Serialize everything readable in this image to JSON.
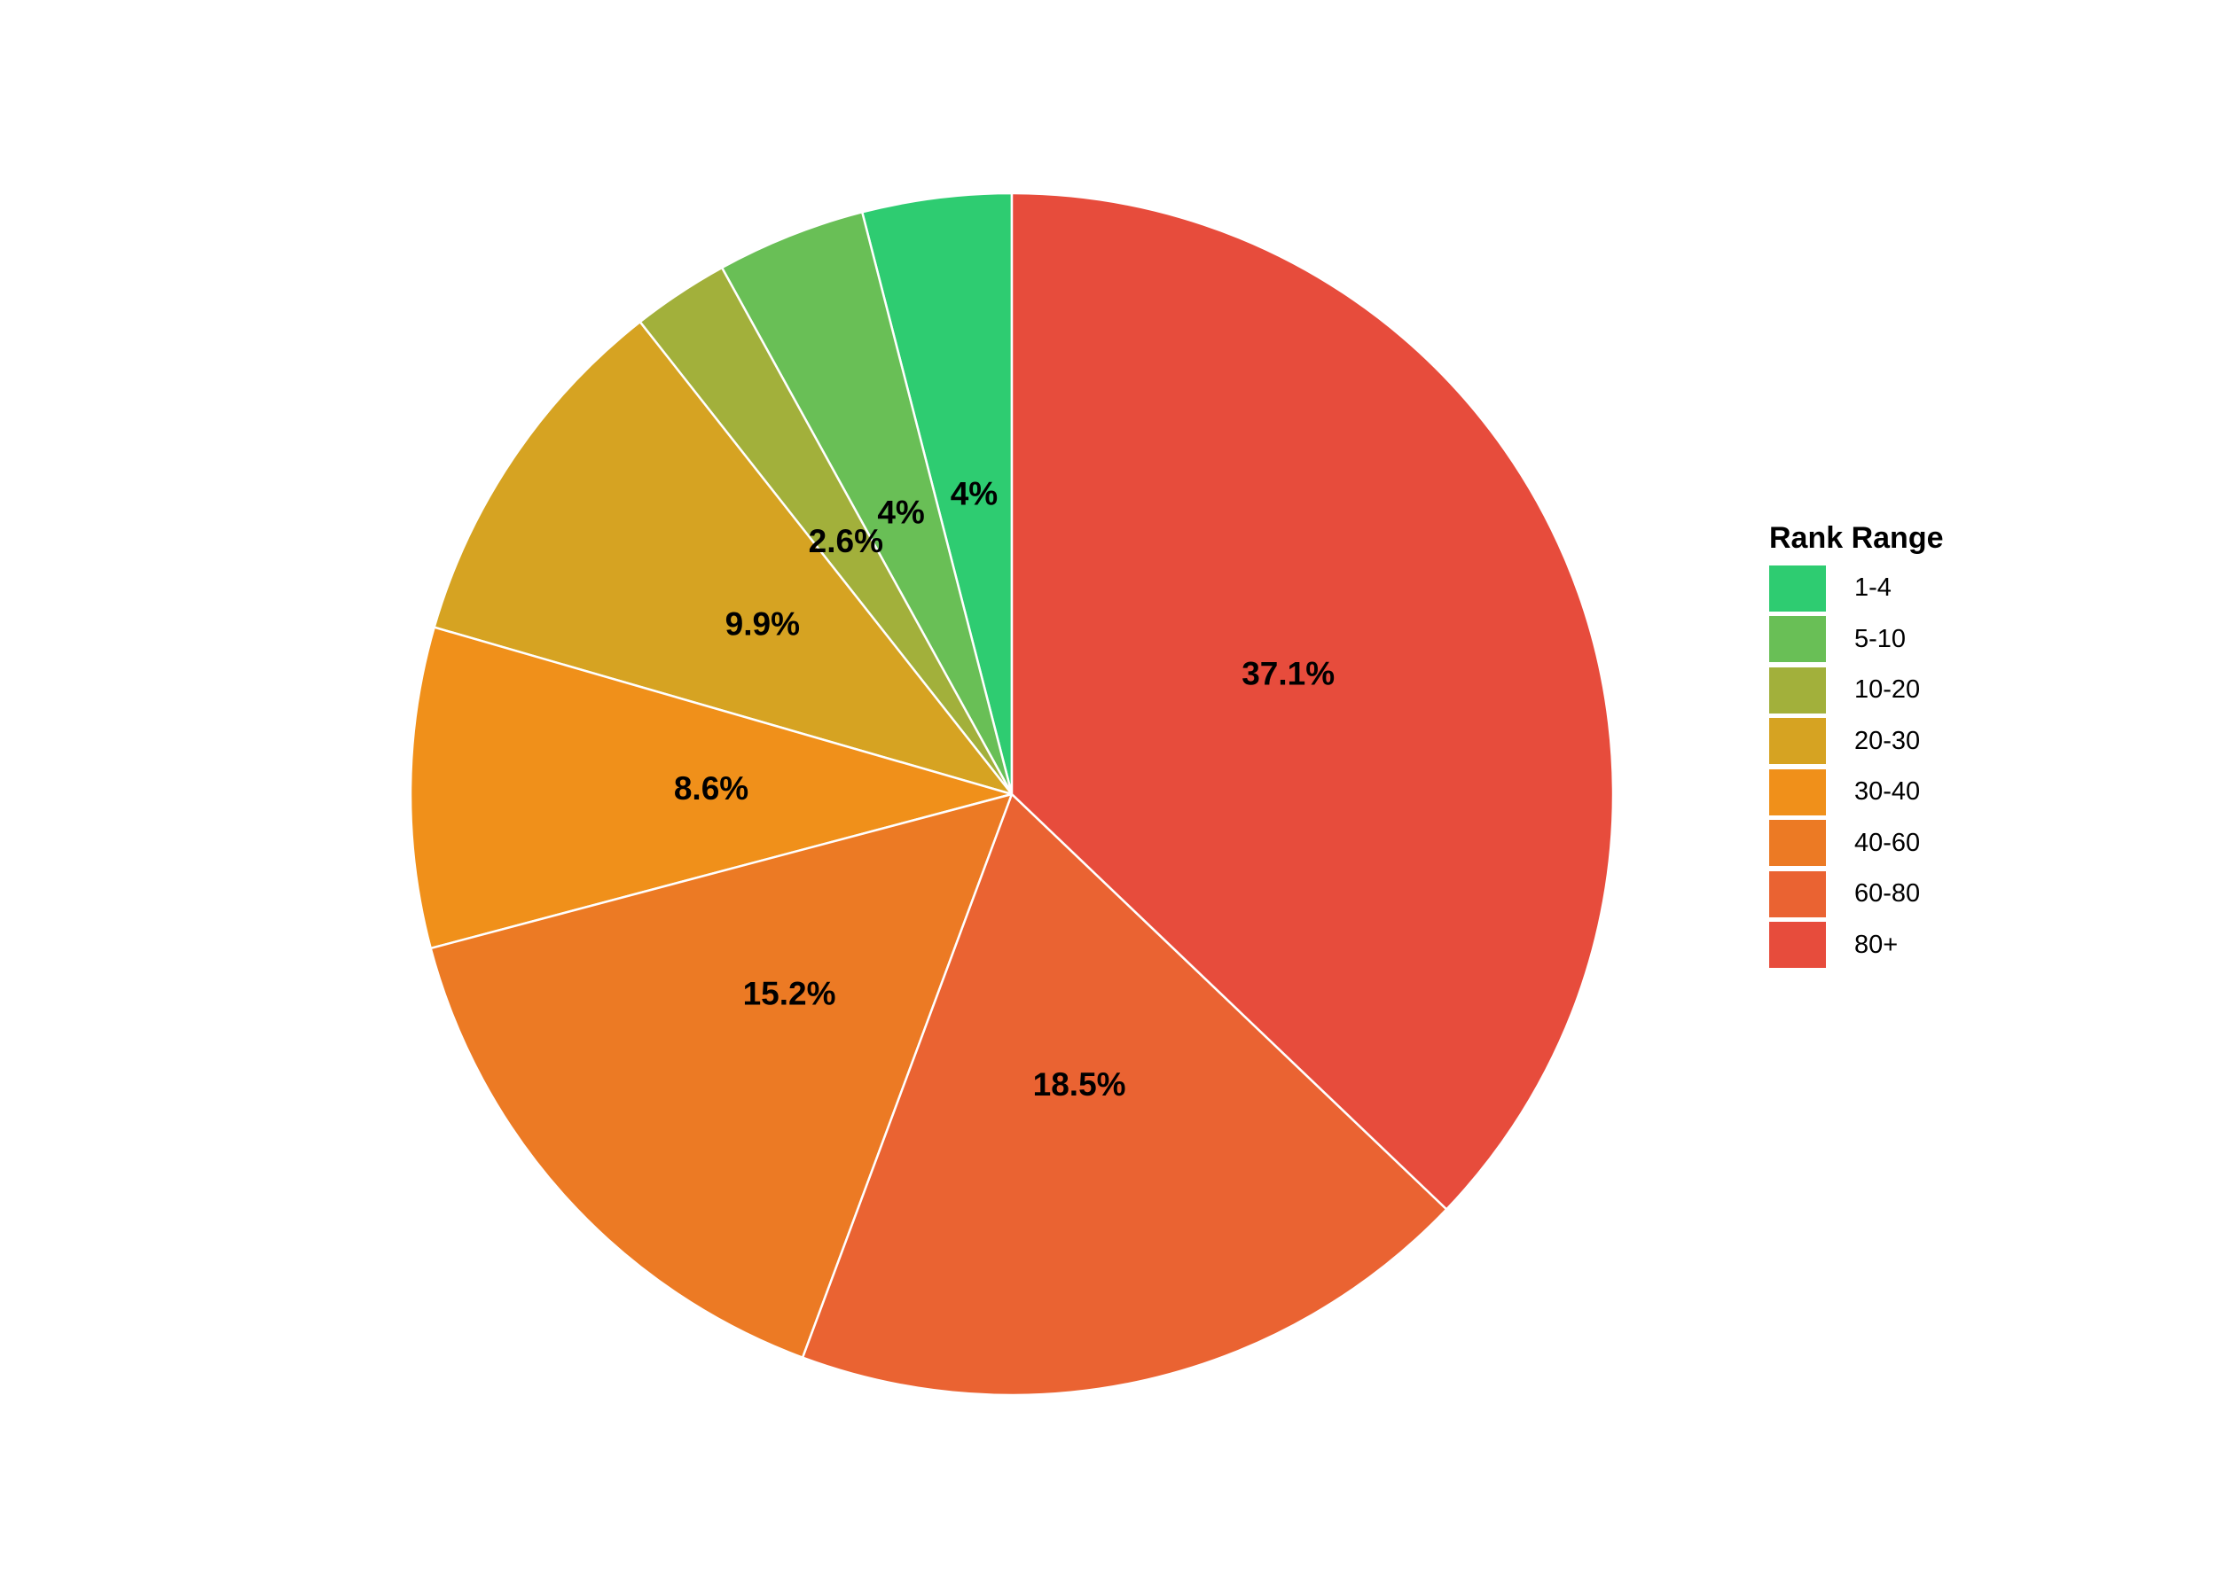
{
  "chart_data": {
    "type": "pie",
    "title": "",
    "legend_title": "Rank Range",
    "legend_placement": "right",
    "start": "top",
    "direction": "counterclockwise",
    "slices": [
      {
        "label": "1-4",
        "value": 4.0,
        "text": "4%",
        "color": "#2ecc71"
      },
      {
        "label": "5-10",
        "value": 4.0,
        "text": "4%",
        "color": "#69bf56"
      },
      {
        "label": "10-20",
        "value": 2.6,
        "text": "2.6%",
        "color": "#a2b03b"
      },
      {
        "label": "20-30",
        "value": 9.9,
        "text": "9.9%",
        "color": "#d6a322"
      },
      {
        "label": "30-40",
        "value": 8.6,
        "text": "8.6%",
        "color": "#f0901a"
      },
      {
        "label": "40-60",
        "value": 15.2,
        "text": "15.2%",
        "color": "#ec7a24"
      },
      {
        "label": "60-80",
        "value": 18.5,
        "text": "18.5%",
        "color": "#ea6332"
      },
      {
        "label": "80+",
        "value": 37.1,
        "text": "37.1%",
        "color": "#e74c3c"
      }
    ]
  }
}
